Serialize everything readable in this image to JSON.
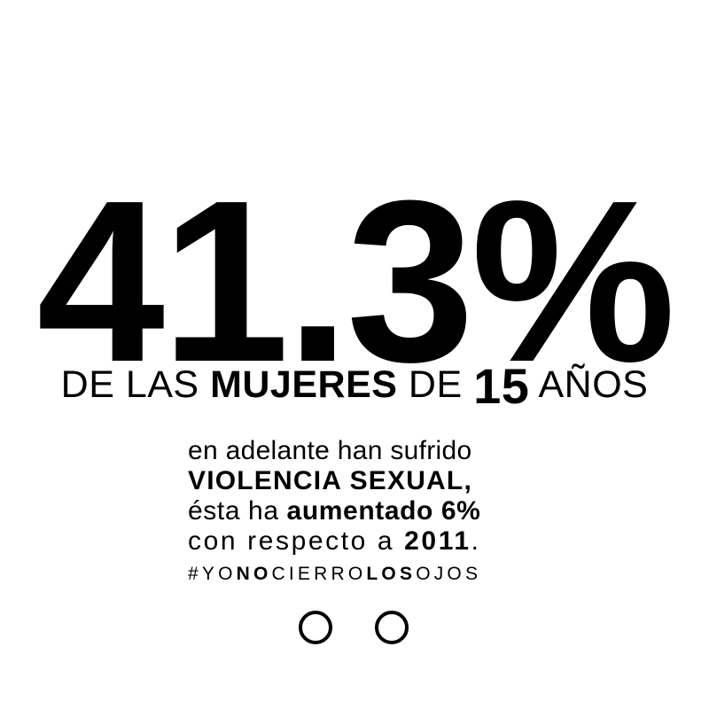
{
  "stat": {
    "value": "41.3%"
  },
  "headline": {
    "part1": "DE LAS ",
    "part2": "MUJERES",
    "part3": " DE ",
    "part4": "15",
    "part5": " AÑOS"
  },
  "body": {
    "line1": "en adelante han sufrido",
    "line2": "VIOLENCIA SEXUAL,",
    "line3_a": "ésta ha ",
    "line3_b": "aumentado 6%",
    "line4_a": "con respecto a ",
    "line4_b": "2011",
    "line4_c": "."
  },
  "hashtag": {
    "part1": "#YO",
    "part2": "NO",
    "part3": "CIERRO",
    "part4": "LOS",
    "part5": "OJOS"
  },
  "decoration": {
    "eyes_icon": "two-open-circles-icon",
    "colors": {
      "background": "#ffffff",
      "text": "#000000"
    }
  }
}
